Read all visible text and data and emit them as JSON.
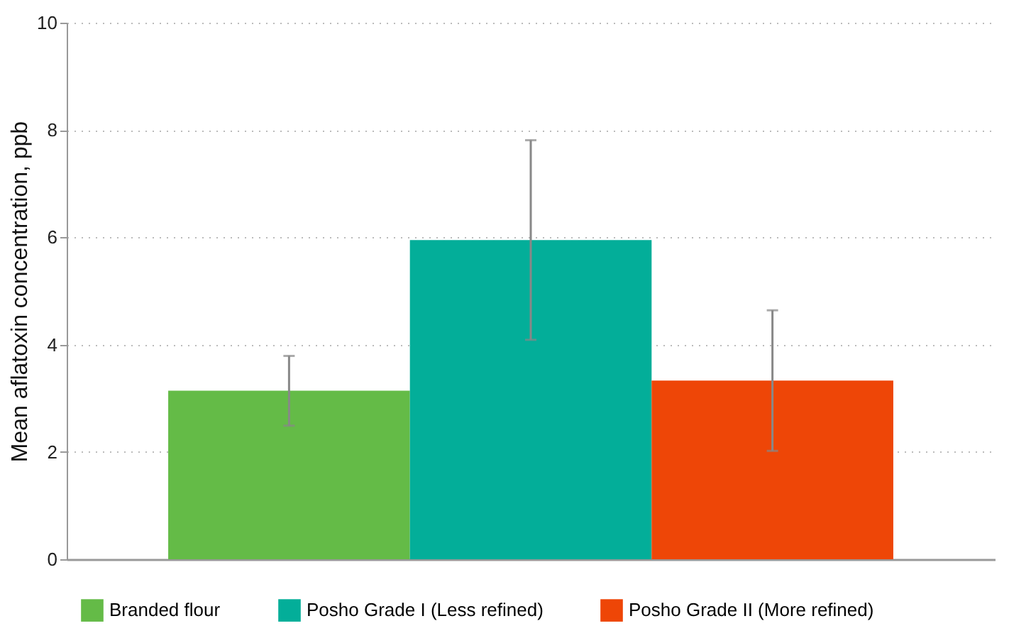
{
  "chart_data": {
    "type": "bar",
    "ylabel": "Mean aflatoxin concentration, ppb",
    "categories": [
      null
    ],
    "series": [
      {
        "name": "Branded flour",
        "color": "#64bb47",
        "values": [
          3.14
        ],
        "errors": [
          [
            2.49,
            3.79
          ]
        ]
      },
      {
        "name": "Posho Grade I (Less refined)",
        "color": "#03ae99",
        "values": [
          5.95
        ],
        "errors": [
          [
            4.09,
            7.81
          ]
        ]
      },
      {
        "name": "Posho Grade II (More refined)",
        "color": "#ee4607",
        "values": [
          3.33
        ],
        "errors": [
          [
            2.02,
            4.64
          ]
        ]
      }
    ],
    "ylim": [
      0,
      10
    ],
    "yticks": [
      0,
      2,
      4,
      6,
      8,
      10
    ],
    "grid": "y",
    "legend": "bottom"
  }
}
